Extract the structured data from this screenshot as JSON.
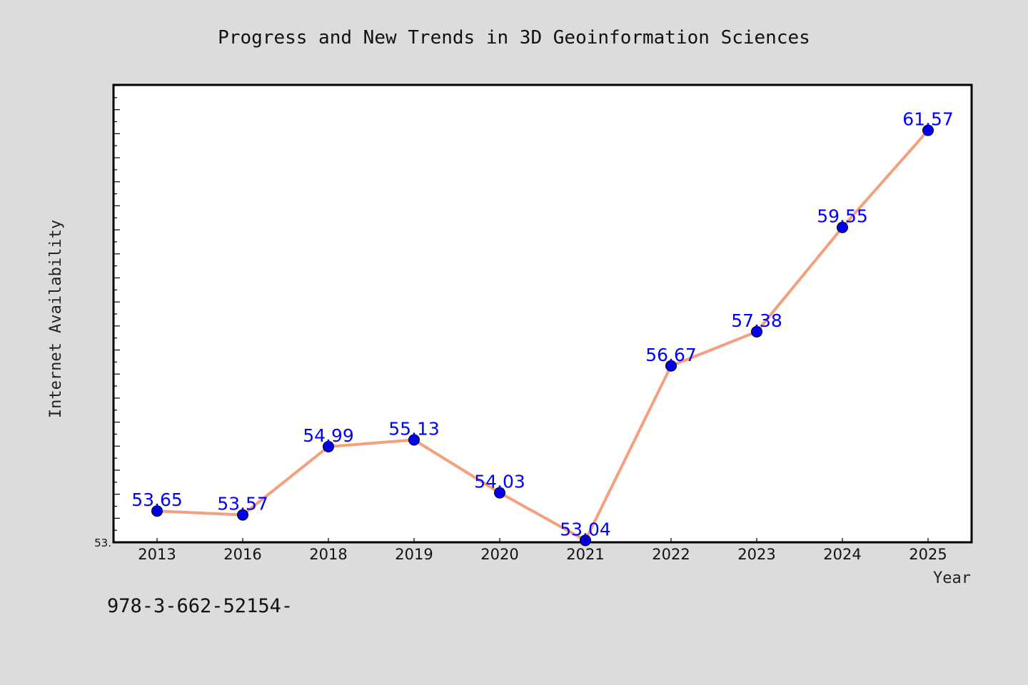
{
  "chart_data": {
    "type": "line",
    "title": "Progress and New Trends in 3D Geoinformation Sciences",
    "xlabel": "Year",
    "ylabel": "Internet Availability",
    "categories": [
      "2013",
      "2016",
      "2018",
      "2019",
      "2020",
      "2021",
      "2022",
      "2023",
      "2024",
      "2025"
    ],
    "series": [
      {
        "values": [
          53.65,
          53.57,
          54.99,
          55.13,
          54.03,
          53.04,
          56.67,
          57.38,
          59.55,
          61.57
        ],
        "labels": [
          "53.65",
          "53.57",
          "54.99",
          "55.13",
          "54.03",
          "53.04",
          "56.67",
          "57.38",
          "59.55",
          "61.57"
        ]
      }
    ],
    "ylim": [
      53.0,
      62.5
    ],
    "ytick_label": "53.",
    "line_color": "#f4a07f",
    "marker_color": "#0000ee",
    "label_color": "#0000ff",
    "grid": false,
    "legend": "none"
  },
  "footer": {
    "code": "978-3-662-52154-"
  }
}
